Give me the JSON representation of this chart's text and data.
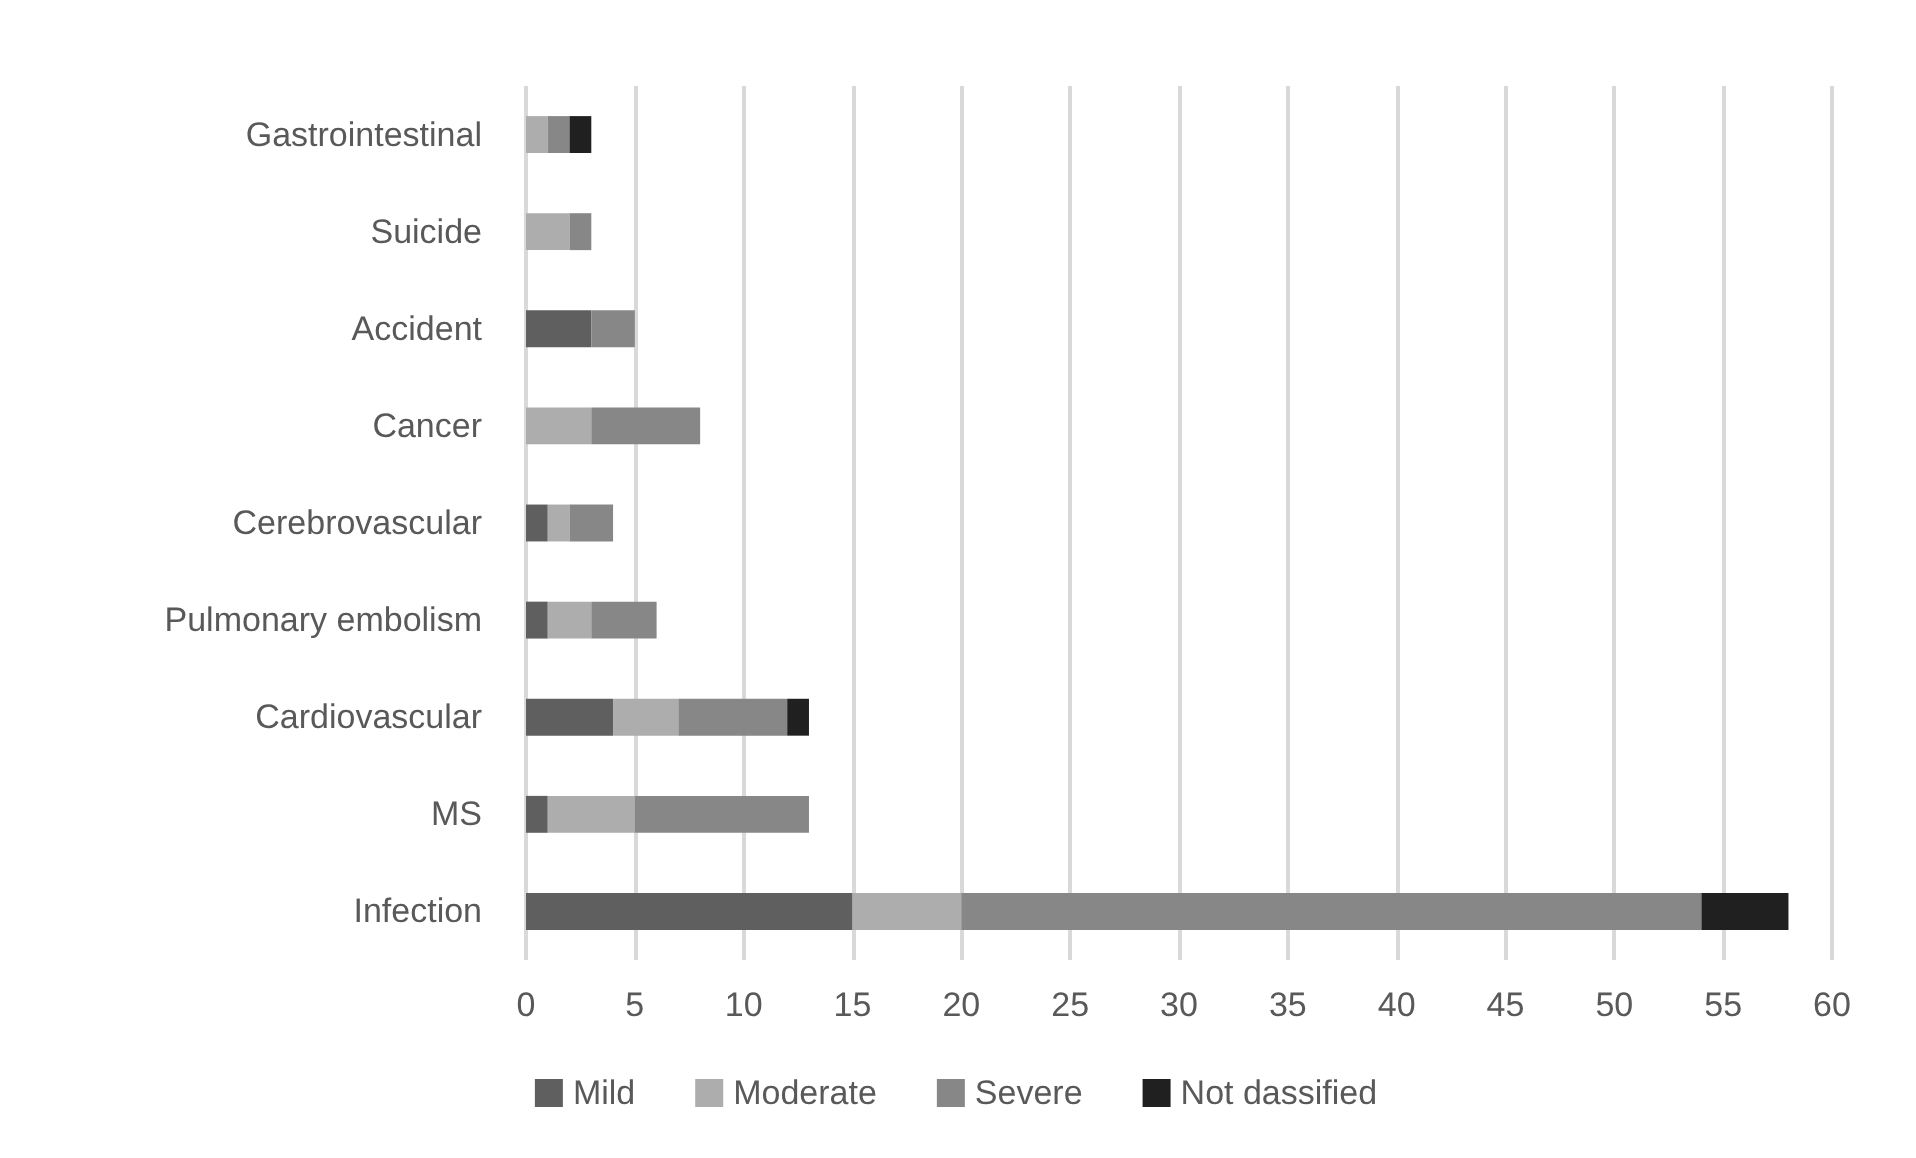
{
  "chart_data": {
    "type": "bar",
    "orientation": "horizontal",
    "stacked": true,
    "categories": [
      "Gastrointestinal",
      "Suicide",
      "Accident",
      "Cancer",
      "Cerebrovascular",
      "Pulmonary embolism",
      "Cardiovascular",
      "MS",
      "Infection"
    ],
    "series": [
      {
        "name": "Mild",
        "color": "#5f5f5f",
        "values": [
          0,
          0,
          3,
          0,
          1,
          1,
          4,
          1,
          15
        ]
      },
      {
        "name": "Moderate",
        "color": "#adadad",
        "values": [
          1,
          2,
          0,
          3,
          1,
          2,
          3,
          4,
          5
        ]
      },
      {
        "name": "Severe",
        "color": "#878787",
        "values": [
          1,
          1,
          2,
          5,
          2,
          3,
          5,
          8,
          34
        ]
      },
      {
        "name": "Not dassified",
        "color": "#202020",
        "values": [
          1,
          0,
          0,
          0,
          0,
          0,
          1,
          0,
          4
        ]
      }
    ],
    "xlim": [
      0,
      60
    ],
    "xticks": [
      0,
      5,
      10,
      15,
      20,
      25,
      30,
      35,
      40,
      45,
      50,
      55,
      60
    ],
    "grid": "x",
    "legend": "bottom"
  }
}
